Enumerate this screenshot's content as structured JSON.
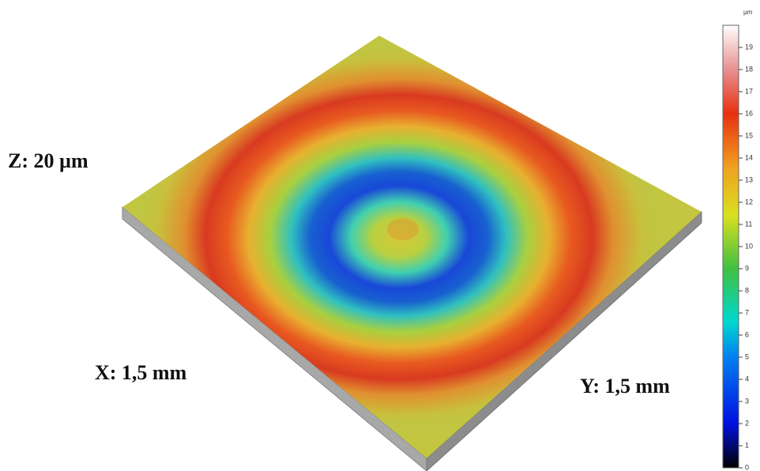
{
  "labels": {
    "z": "Z: 20 µm",
    "x": "X: 1,5 mm",
    "y": "Y: 1,5 mm"
  },
  "colorbar": {
    "unit": "µm",
    "range": [
      0,
      20
    ],
    "ticks": [
      0,
      1,
      2,
      3,
      4,
      5,
      6,
      7,
      8,
      9,
      10,
      11,
      12,
      13,
      14,
      15,
      16,
      17,
      18,
      19
    ]
  }
}
